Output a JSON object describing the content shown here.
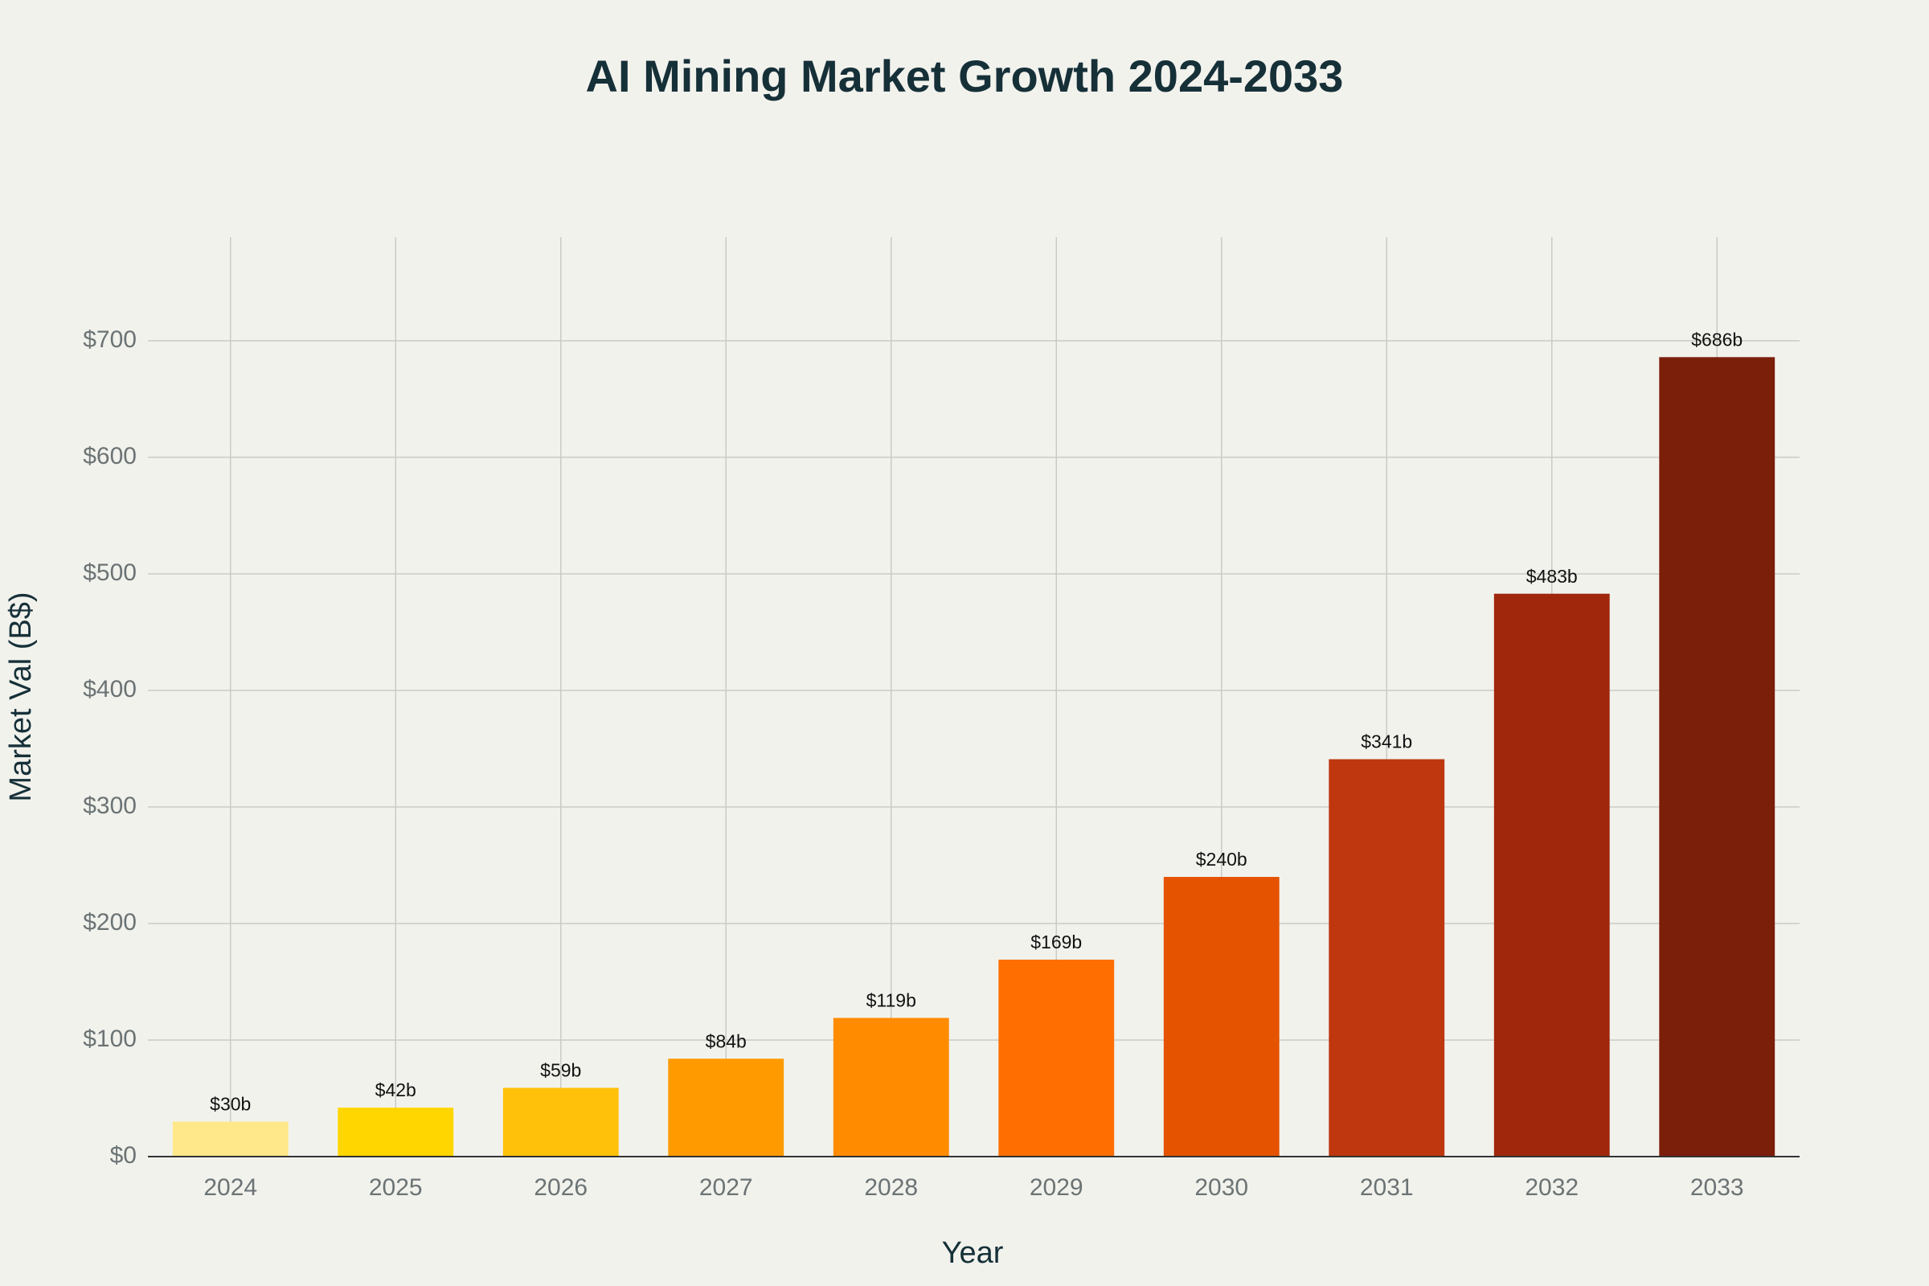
{
  "chart_data": {
    "type": "bar",
    "title": "AI Mining Market Growth 2024-2033",
    "x_label": "Year",
    "y_label": "Market Val (B$)",
    "categories": [
      "2024",
      "2025",
      "2026",
      "2027",
      "2028",
      "2029",
      "2030",
      "2031",
      "2032",
      "2033"
    ],
    "values": [
      30,
      42,
      59,
      84,
      119,
      169,
      240,
      341,
      483,
      686
    ],
    "value_labels": [
      "$30b",
      "$42b",
      "$59b",
      "$84b",
      "$119b",
      "$169b",
      "$240b",
      "$341b",
      "$483b",
      "$686b"
    ],
    "colors": [
      "#ffe88a",
      "#ffd600",
      "#ffc10a",
      "#ff9a00",
      "#ff8c00",
      "#ff6e00",
      "#e55300",
      "#be370e",
      "#a0270b",
      "#7b1e0a"
    ],
    "ylim": [
      0,
      789
    ],
    "yticks": [
      {
        "value": 0,
        "label": "$0"
      },
      {
        "value": 100,
        "label": "$100"
      },
      {
        "value": 200,
        "label": "$200"
      },
      {
        "value": 300,
        "label": "$300"
      },
      {
        "value": 400,
        "label": "$400"
      },
      {
        "value": 500,
        "label": "$500"
      },
      {
        "value": 600,
        "label": "$600"
      },
      {
        "value": 700,
        "label": "$700"
      }
    ],
    "grid": true
  }
}
